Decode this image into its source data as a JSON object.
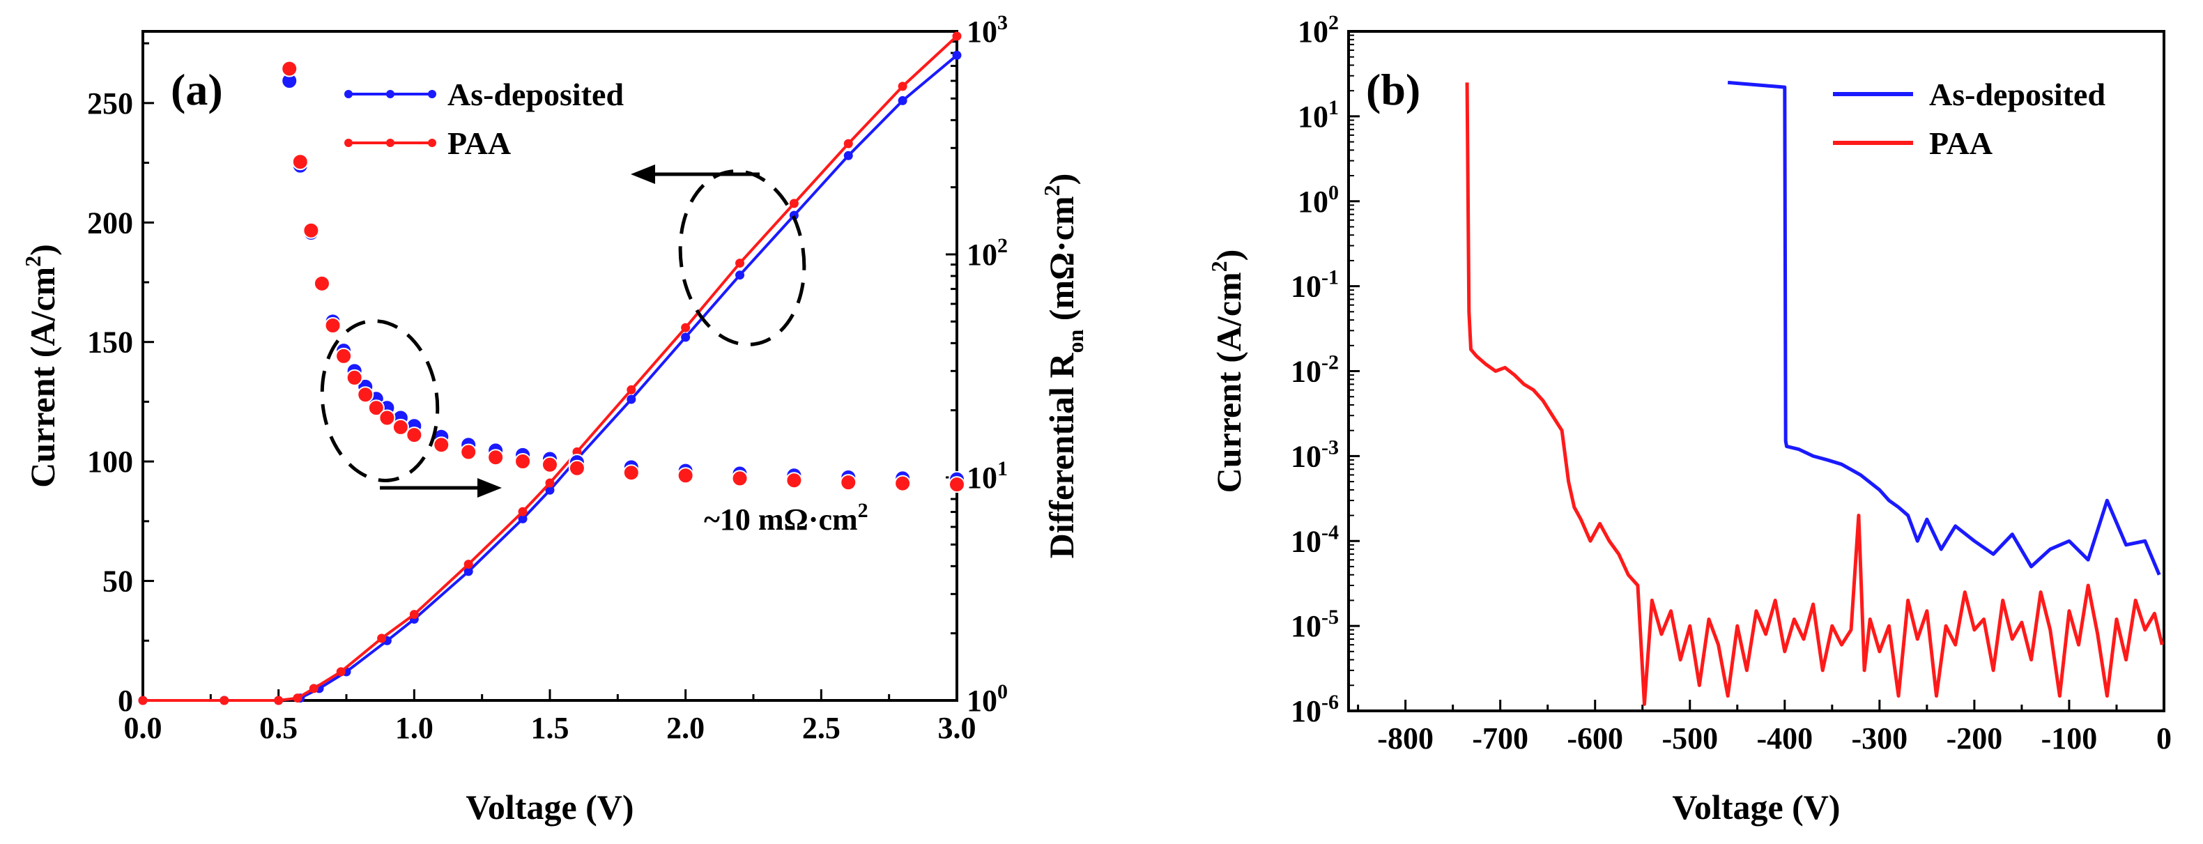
{
  "chart_data": [
    {
      "panel_label": "(a)",
      "type": "line",
      "title": "",
      "xlabel": "Voltage (V)",
      "ylabel": "Current (A/cm",
      "ylabel_sup": "2",
      "ylabel_tail": ")",
      "y2label": "Differential R",
      "y2label_sub": "on",
      "y2label_tail": " (mΩ·cm",
      "y2label_sup": "2",
      "y2label_end": ")",
      "xlim": [
        0,
        3
      ],
      "ylim": [
        0,
        280
      ],
      "y2lim": [
        1,
        1000
      ],
      "y2scale": "log",
      "xticks": [
        "0.0",
        "0.5",
        "1.0",
        "1.5",
        "2.0",
        "2.5",
        "3.0"
      ],
      "yticks": [
        "0",
        "50",
        "100",
        "150",
        "200",
        "250"
      ],
      "y2ticks": [
        {
          "base": "10",
          "exp": "0"
        },
        {
          "base": "10",
          "exp": "1"
        },
        {
          "base": "10",
          "exp": "2"
        },
        {
          "base": "10",
          "exp": "3"
        }
      ],
      "legend": {
        "position": "top-left",
        "entries": [
          "As-deposited",
          "PAA"
        ]
      },
      "annotation": "~10 mΩ·cm",
      "annotation_sup": "2",
      "series": [
        {
          "name": "As-deposited",
          "color": "#1a1aff",
          "axis": "left",
          "x": [
            0.0,
            0.3,
            0.5,
            0.58,
            0.65,
            0.75,
            0.9,
            1.0,
            1.2,
            1.4,
            1.5,
            1.6,
            1.8,
            2.0,
            2.2,
            2.4,
            2.6,
            2.8,
            3.0
          ],
          "y": [
            0,
            0,
            0,
            1,
            5,
            12,
            25,
            34,
            54,
            76,
            88,
            101,
            126,
            152,
            178,
            203,
            228,
            251,
            270
          ]
        },
        {
          "name": "PAA",
          "color": "#ff1a1a",
          "axis": "left",
          "x": [
            0.0,
            0.3,
            0.5,
            0.57,
            0.63,
            0.73,
            0.88,
            1.0,
            1.2,
            1.4,
            1.5,
            1.6,
            1.8,
            2.0,
            2.2,
            2.4,
            2.6,
            2.8,
            3.0
          ],
          "y": [
            0,
            0,
            0,
            1,
            5,
            12,
            26,
            36,
            57,
            79,
            91,
            104,
            130,
            156,
            183,
            208,
            233,
            257,
            278
          ]
        },
        {
          "name": "As-deposited R_on",
          "color": "#1a1aff",
          "axis": "right",
          "x": [
            0.54,
            0.58,
            0.62,
            0.66,
            0.7,
            0.74,
            0.78,
            0.82,
            0.86,
            0.9,
            0.95,
            1.0,
            1.1,
            1.2,
            1.3,
            1.4,
            1.5,
            1.6,
            1.8,
            2.0,
            2.2,
            2.4,
            2.6,
            2.8,
            3.0
          ],
          "y": [
            600,
            250,
            125,
            75,
            50,
            37,
            30,
            25.5,
            22.5,
            20.5,
            18.5,
            17,
            15.2,
            14,
            13.2,
            12.6,
            12.1,
            11.7,
            11.1,
            10.7,
            10.4,
            10.2,
            10.0,
            9.9,
            9.8
          ]
        },
        {
          "name": "PAA R_on",
          "color": "#ff1a1a",
          "axis": "right",
          "x": [
            0.54,
            0.58,
            0.62,
            0.66,
            0.7,
            0.74,
            0.78,
            0.82,
            0.86,
            0.9,
            0.95,
            1.0,
            1.1,
            1.2,
            1.3,
            1.4,
            1.5,
            1.6,
            1.8,
            2.0,
            2.2,
            2.4,
            2.6,
            2.8,
            3.0
          ],
          "y": [
            680,
            260,
            128,
            74,
            48,
            35,
            28,
            23.5,
            20.5,
            18.5,
            16.8,
            15.5,
            14,
            13,
            12.3,
            11.8,
            11.4,
            11.0,
            10.5,
            10.2,
            9.9,
            9.7,
            9.5,
            9.4,
            9.3
          ]
        }
      ]
    },
    {
      "panel_label": "(b)",
      "type": "line",
      "title": "",
      "xlabel": "Voltage (V)",
      "ylabel": "Current (A/cm",
      "ylabel_sup": "2",
      "ylabel_tail": ")",
      "xlim": [
        -860,
        0
      ],
      "ylim": [
        1e-06,
        100
      ],
      "yscale": "log",
      "xticks": [
        "-800",
        "-700",
        "-600",
        "-500",
        "-400",
        "-300",
        "-200",
        "-100",
        "0"
      ],
      "yticks": [
        {
          "base": "10",
          "exp": "-6"
        },
        {
          "base": "10",
          "exp": "-5"
        },
        {
          "base": "10",
          "exp": "-4"
        },
        {
          "base": "10",
          "exp": "-3"
        },
        {
          "base": "10",
          "exp": "-2"
        },
        {
          "base": "10",
          "exp": "-1"
        },
        {
          "base": "10",
          "exp": "0"
        },
        {
          "base": "10",
          "exp": "1"
        },
        {
          "base": "10",
          "exp": "2"
        }
      ],
      "legend": {
        "position": "top-right",
        "entries": [
          "As-deposited",
          "PAA"
        ]
      },
      "series": [
        {
          "name": "As-deposited",
          "color": "#1a1aff",
          "x": [
            -460,
            -400,
            -399,
            -398,
            -385,
            -370,
            -355,
            -340,
            -320,
            -300,
            -290,
            -280,
            -270,
            -260,
            -250,
            -235,
            -220,
            -200,
            -180,
            -160,
            -140,
            -120,
            -100,
            -80,
            -60,
            -40,
            -20,
            -5
          ],
          "y": [
            25,
            22,
            0.0015,
            0.0013,
            0.0012,
            0.001,
            0.0009,
            0.0008,
            0.0006,
            0.0004,
            0.0003,
            0.00025,
            0.0002,
            0.0001,
            0.00018,
            8e-05,
            0.00015,
            0.0001,
            7e-05,
            0.00012,
            5e-05,
            8e-05,
            0.0001,
            6e-05,
            0.0003,
            9e-05,
            0.0001,
            4e-05
          ]
        },
        {
          "name": "PAA",
          "color": "#ff1a1a",
          "x": [
            -735,
            -733,
            -731,
            -725,
            -715,
            -705,
            -695,
            -685,
            -675,
            -665,
            -655,
            -645,
            -635,
            -628,
            -622,
            -615,
            -605,
            -595,
            -585,
            -575,
            -565,
            -555,
            -548,
            -540,
            -530,
            -520,
            -510,
            -500,
            -490,
            -480,
            -470,
            -460,
            -450,
            -440,
            -430,
            -420,
            -410,
            -400,
            -390,
            -380,
            -370,
            -360,
            -350,
            -340,
            -330,
            -322,
            -316,
            -310,
            -300,
            -290,
            -280,
            -270,
            -260,
            -250,
            -240,
            -230,
            -220,
            -210,
            -200,
            -190,
            -180,
            -170,
            -160,
            -150,
            -140,
            -130,
            -120,
            -110,
            -100,
            -90,
            -80,
            -70,
            -60,
            -50,
            -40,
            -30,
            -20,
            -10,
            -2
          ],
          "y": [
            25,
            0.05,
            0.018,
            0.015,
            0.012,
            0.01,
            0.011,
            0.009,
            0.007,
            0.006,
            0.0045,
            0.003,
            0.002,
            0.0005,
            0.00025,
            0.00018,
            0.0001,
            0.00016,
            0.0001,
            7e-05,
            4e-05,
            3e-05,
            1.2e-06,
            2e-05,
            8e-06,
            1.5e-05,
            4e-06,
            1e-05,
            2e-06,
            1.2e-05,
            6e-06,
            1.5e-06,
            1e-05,
            3e-06,
            1.5e-05,
            8e-06,
            2e-05,
            5e-06,
            1.2e-05,
            7e-06,
            1.8e-05,
            3e-06,
            1e-05,
            6e-06,
            9e-06,
            0.0002,
            3e-06,
            1.2e-05,
            5e-06,
            1e-05,
            1.5e-06,
            2e-05,
            7e-06,
            1.5e-05,
            1.5e-06,
            1e-05,
            6e-06,
            2.5e-05,
            9e-06,
            1.2e-05,
            3e-06,
            2e-05,
            7e-06,
            1.1e-05,
            4e-06,
            2.5e-05,
            9e-06,
            1.5e-06,
            1.5e-05,
            6e-06,
            3e-05,
            8e-06,
            1.5e-06,
            1.2e-05,
            4e-06,
            2e-05,
            9e-06,
            1.4e-05,
            6e-06
          ]
        }
      ]
    }
  ]
}
